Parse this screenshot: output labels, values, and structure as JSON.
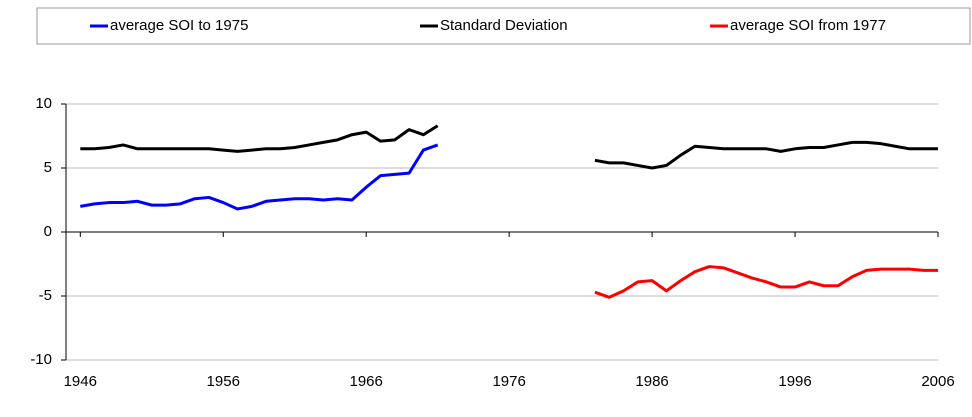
{
  "chart_data": {
    "type": "line",
    "xlim": [
      1945,
      2006
    ],
    "xticks": [
      1946,
      1956,
      1966,
      1976,
      1986,
      1996,
      2006
    ],
    "ylim": [
      -10,
      10
    ],
    "yticks": [
      -10,
      -5,
      0,
      5,
      10
    ],
    "grid": true,
    "legend": "top",
    "series": [
      {
        "name": "average SOI to 1975",
        "color": "#0000ff",
        "x": [
          1946,
          1947,
          1948,
          1949,
          1950,
          1951,
          1952,
          1953,
          1954,
          1955,
          1956,
          1957,
          1958,
          1959,
          1960,
          1961,
          1962,
          1963,
          1964,
          1965,
          1966,
          1967,
          1968,
          1969,
          1970,
          1971
        ],
        "values": [
          2.0,
          2.2,
          2.3,
          2.3,
          2.4,
          2.1,
          2.1,
          2.2,
          2.6,
          2.7,
          2.3,
          1.8,
          2.0,
          2.4,
          2.5,
          2.6,
          2.6,
          2.5,
          2.6,
          2.5,
          3.5,
          4.4,
          4.5,
          4.6,
          6.4,
          6.8
        ]
      },
      {
        "name": "Standard Deviation",
        "color": "#000000",
        "x": [
          1946,
          1947,
          1948,
          1949,
          1950,
          1951,
          1952,
          1953,
          1954,
          1955,
          1956,
          1957,
          1958,
          1959,
          1960,
          1961,
          1962,
          1963,
          1964,
          1965,
          1966,
          1967,
          1968,
          1969,
          1970,
          1971,
          1976,
          1982,
          1983,
          1984,
          1985,
          1986,
          1987,
          1988,
          1989,
          1990,
          1991,
          1992,
          1993,
          1994,
          1995,
          1996,
          1997,
          1998,
          1999,
          2000,
          2001,
          2002,
          2003,
          2004,
          2005,
          2006
        ],
        "values": [
          6.5,
          6.5,
          6.6,
          6.8,
          6.5,
          6.5,
          6.5,
          6.5,
          6.5,
          6.5,
          6.4,
          6.3,
          6.4,
          6.5,
          6.5,
          6.6,
          6.8,
          7.0,
          7.2,
          7.6,
          7.8,
          7.1,
          7.2,
          8.0,
          7.6,
          8.3,
          null,
          5.6,
          5.4,
          5.4,
          5.2,
          5.0,
          5.2,
          6.0,
          6.7,
          6.6,
          6.5,
          6.5,
          6.5,
          6.5,
          6.3,
          6.5,
          6.6,
          6.6,
          6.8,
          7.0,
          7.0,
          6.9,
          6.7,
          6.5,
          6.5,
          6.5
        ]
      },
      {
        "name": "average SOI from 1977",
        "color": "#ff0000",
        "x": [
          1982,
          1983,
          1984,
          1985,
          1986,
          1987,
          1988,
          1989,
          1990,
          1991,
          1992,
          1993,
          1994,
          1995,
          1996,
          1997,
          1998,
          1999,
          2000,
          2001,
          2002,
          2003,
          2004,
          2005,
          2006
        ],
        "values": [
          -4.7,
          -5.1,
          -4.6,
          -3.9,
          -3.8,
          -4.6,
          -3.8,
          -3.1,
          -2.7,
          -2.8,
          -3.2,
          -3.6,
          -3.9,
          -4.3,
          -4.3,
          -3.9,
          -4.2,
          -4.2,
          -3.5,
          -3.0,
          -2.9,
          -2.9,
          -2.9,
          -3.0,
          -3.0
        ]
      }
    ]
  }
}
